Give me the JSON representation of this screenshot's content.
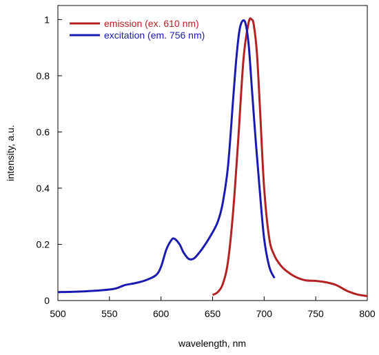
{
  "chart_data": {
    "type": "line",
    "xlabel": "wavelength, nm",
    "ylabel": "intensity, a.u.",
    "xlim": [
      500,
      800
    ],
    "ylim": [
      0,
      1.05
    ],
    "x_ticks": [
      "500",
      "550",
      "600",
      "650",
      "700",
      "750",
      "800"
    ],
    "y_ticks": [
      "0",
      "0.2",
      "0.4",
      "0.6",
      "0.8",
      "1"
    ],
    "grid": false,
    "legend_position": "top-left",
    "series": [
      {
        "name": "emission (ex. 610 nm)",
        "color": "#b22222",
        "x": [
          650,
          655,
          660,
          665,
          670,
          675,
          680,
          685,
          688,
          690,
          693,
          696,
          700,
          705,
          710,
          715,
          720,
          730,
          740,
          750,
          760,
          770,
          780,
          790,
          800
        ],
        "y": [
          0.02,
          0.03,
          0.06,
          0.14,
          0.32,
          0.58,
          0.86,
          0.99,
          1.0,
          0.98,
          0.88,
          0.68,
          0.4,
          0.22,
          0.16,
          0.13,
          0.11,
          0.085,
          0.072,
          0.07,
          0.065,
          0.055,
          0.035,
          0.022,
          0.016
        ]
      },
      {
        "name": "excitation (em. 756 nm)",
        "color": "#1a1ab0",
        "x": [
          500,
          520,
          540,
          555,
          565,
          575,
          585,
          595,
          600,
          605,
          610,
          613,
          618,
          622,
          627,
          632,
          637,
          642,
          648,
          655,
          660,
          665,
          670,
          673,
          676,
          679,
          682,
          685,
          688,
          692,
          696,
          700,
          705,
          710
        ],
        "y": [
          0.03,
          0.032,
          0.036,
          0.042,
          0.055,
          0.062,
          0.072,
          0.09,
          0.12,
          0.18,
          0.215,
          0.22,
          0.2,
          0.17,
          0.148,
          0.15,
          0.17,
          0.195,
          0.23,
          0.28,
          0.35,
          0.48,
          0.72,
          0.86,
          0.96,
          0.995,
          0.985,
          0.91,
          0.76,
          0.56,
          0.38,
          0.22,
          0.12,
          0.08
        ]
      }
    ]
  }
}
